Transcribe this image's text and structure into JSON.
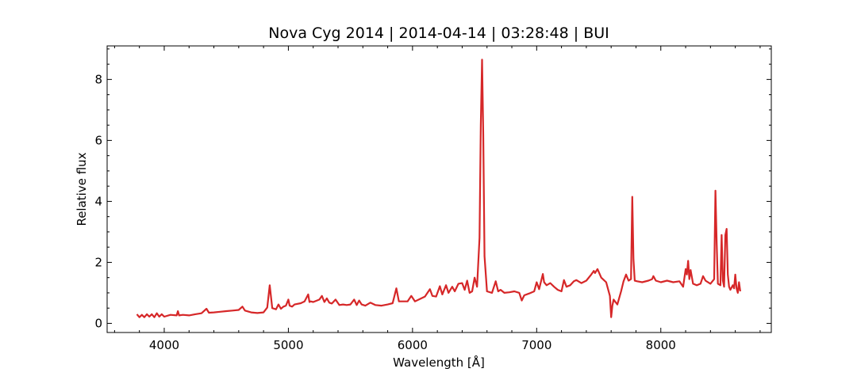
{
  "chart_data": {
    "type": "line",
    "title": "Nova Cyg 2014 | 2014-04-14 | 03:28:48 | BUI",
    "xlabel": "Wavelength [Å]",
    "ylabel": "Relative flux",
    "xlim": [
      3540,
      8890
    ],
    "ylim": [
      -0.3,
      9.1
    ],
    "x_ticks": [
      4000,
      5000,
      6000,
      7000,
      8000
    ],
    "x_tick_labels": [
      "4000",
      "5000",
      "6000",
      "7000",
      "8000"
    ],
    "y_ticks": [
      0,
      2,
      4,
      6,
      8
    ],
    "y_tick_labels": [
      "0",
      "2",
      "4",
      "6",
      "8"
    ],
    "x_minor_step": 200,
    "y_minor_step": 0.5,
    "grid": false,
    "legend": "none",
    "series": [
      {
        "color": "#d62728",
        "x": [
          3780,
          3800,
          3820,
          3840,
          3860,
          3880,
          3900,
          3920,
          3940,
          3960,
          3980,
          4000,
          4050,
          4100,
          4110,
          4120,
          4150,
          4200,
          4250,
          4300,
          4340,
          4360,
          4400,
          4450,
          4500,
          4550,
          4600,
          4630,
          4650,
          4700,
          4750,
          4800,
          4830,
          4850,
          4870,
          4900,
          4920,
          4940,
          4960,
          4980,
          5000,
          5010,
          5030,
          5050,
          5100,
          5130,
          5160,
          5170,
          5180,
          5200,
          5250,
          5270,
          5290,
          5310,
          5330,
          5350,
          5380,
          5410,
          5440,
          5470,
          5500,
          5530,
          5550,
          5570,
          5590,
          5620,
          5660,
          5700,
          5750,
          5800,
          5840,
          5870,
          5890,
          5920,
          5960,
          5990,
          6020,
          6060,
          6100,
          6140,
          6160,
          6190,
          6220,
          6240,
          6270,
          6290,
          6320,
          6340,
          6370,
          6400,
          6420,
          6440,
          6460,
          6480,
          6500,
          6520,
          6540,
          6550,
          6560,
          6570,
          6580,
          6600,
          6640,
          6670,
          6690,
          6710,
          6740,
          6780,
          6820,
          6860,
          6880,
          6900,
          6940,
          6980,
          7000,
          7020,
          7050,
          7060,
          7080,
          7110,
          7140,
          7170,
          7200,
          7220,
          7240,
          7270,
          7300,
          7320,
          7360,
          7400,
          7440,
          7460,
          7470,
          7490,
          7520,
          7560,
          7590,
          7600,
          7610,
          7620,
          7650,
          7680,
          7700,
          7720,
          7740,
          7760,
          7770,
          7780,
          7790,
          7810,
          7850,
          7900,
          7930,
          7940,
          7960,
          8000,
          8050,
          8100,
          8150,
          8180,
          8200,
          8210,
          8220,
          8230,
          8240,
          8260,
          8290,
          8320,
          8340,
          8360,
          8400,
          8430,
          8440,
          8450,
          8460,
          8480,
          8490,
          8500,
          8510,
          8520,
          8530,
          8540,
          8550,
          8560,
          8580,
          8590,
          8600,
          8610,
          8620,
          8630,
          8640
        ],
        "y": [
          0.3,
          0.2,
          0.28,
          0.2,
          0.3,
          0.22,
          0.3,
          0.2,
          0.33,
          0.22,
          0.3,
          0.22,
          0.28,
          0.26,
          0.4,
          0.26,
          0.28,
          0.26,
          0.3,
          0.33,
          0.48,
          0.35,
          0.36,
          0.38,
          0.4,
          0.42,
          0.44,
          0.55,
          0.42,
          0.36,
          0.34,
          0.36,
          0.52,
          1.25,
          0.5,
          0.46,
          0.62,
          0.48,
          0.55,
          0.58,
          0.78,
          0.58,
          0.55,
          0.62,
          0.66,
          0.72,
          0.95,
          0.7,
          0.72,
          0.7,
          0.78,
          0.9,
          0.7,
          0.82,
          0.68,
          0.65,
          0.78,
          0.6,
          0.62,
          0.6,
          0.62,
          0.78,
          0.6,
          0.75,
          0.62,
          0.58,
          0.68,
          0.6,
          0.58,
          0.62,
          0.66,
          1.15,
          0.72,
          0.72,
          0.72,
          0.9,
          0.72,
          0.8,
          0.88,
          1.12,
          0.9,
          0.88,
          1.22,
          0.95,
          1.25,
          1.0,
          1.2,
          1.05,
          1.3,
          1.32,
          1.1,
          1.4,
          1.0,
          1.05,
          1.5,
          1.2,
          2.8,
          6.5,
          8.65,
          6.2,
          2.2,
          1.05,
          1.0,
          1.38,
          1.05,
          1.1,
          1.0,
          1.02,
          1.05,
          1.0,
          0.75,
          0.92,
          0.98,
          1.05,
          1.35,
          1.12,
          1.62,
          1.35,
          1.25,
          1.32,
          1.2,
          1.1,
          1.05,
          1.42,
          1.2,
          1.25,
          1.38,
          1.42,
          1.32,
          1.4,
          1.6,
          1.72,
          1.65,
          1.78,
          1.5,
          1.35,
          0.9,
          0.2,
          0.58,
          0.78,
          0.62,
          1.05,
          1.38,
          1.6,
          1.4,
          1.45,
          4.15,
          2.1,
          1.4,
          1.38,
          1.35,
          1.4,
          1.45,
          1.55,
          1.4,
          1.35,
          1.4,
          1.35,
          1.38,
          1.2,
          1.78,
          1.6,
          2.05,
          1.45,
          1.75,
          1.3,
          1.25,
          1.3,
          1.55,
          1.4,
          1.3,
          1.45,
          4.35,
          2.6,
          1.3,
          1.25,
          2.9,
          1.4,
          1.2,
          2.9,
          3.1,
          1.6,
          1.2,
          1.1,
          1.25,
          1.15,
          1.6,
          1.15,
          1.0,
          1.35,
          1.05
        ]
      }
    ]
  }
}
